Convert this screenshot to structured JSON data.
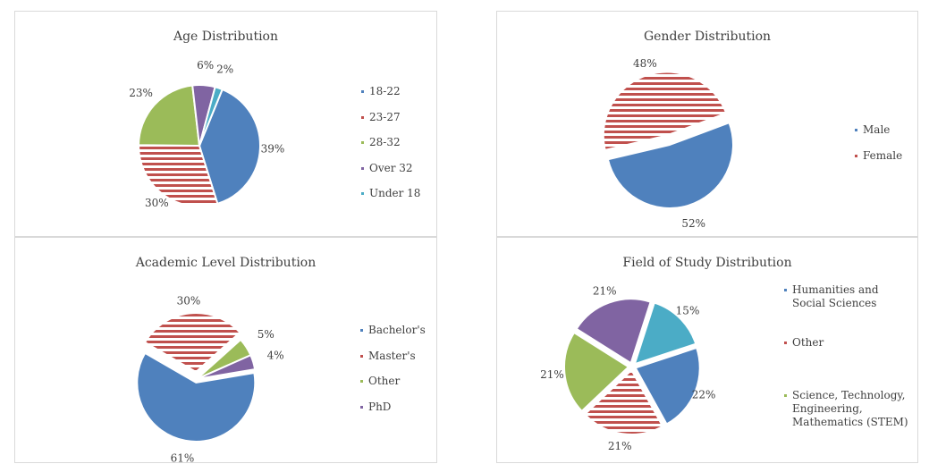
{
  "colors": {
    "blue": "#4f81bd",
    "red": "#c0504d",
    "green": "#9bbb59",
    "purple": "#8064a2",
    "teal": "#4bacc6"
  },
  "chart_data": [
    {
      "type": "pie",
      "title": "Age Distribution",
      "labels": [
        "18-22",
        "23-27",
        "28-32",
        "Over 32",
        "Under 18"
      ],
      "values": [
        39,
        30,
        23,
        6,
        2
      ],
      "data_labels": [
        "39%",
        "30%",
        "23%",
        "6%",
        "2%"
      ],
      "slice_styles": [
        "solid",
        "hatched",
        "solid",
        "solid",
        "solid"
      ],
      "slice_colors": [
        "blue",
        "red",
        "green",
        "purple",
        "teal"
      ],
      "legend": "right"
    },
    {
      "type": "pie",
      "title": "Gender Distribution",
      "labels": [
        "Male",
        "Female"
      ],
      "values": [
        52,
        48
      ],
      "data_labels": [
        "52%",
        "48%"
      ],
      "slice_styles": [
        "solid",
        "hatched"
      ],
      "slice_colors": [
        "blue",
        "red"
      ],
      "legend": "right"
    },
    {
      "type": "pie",
      "title": "Academic Level Distribution",
      "labels": [
        "Bachelor's",
        "Master's",
        "Other",
        "PhD"
      ],
      "values": [
        61,
        30,
        5,
        4
      ],
      "data_labels": [
        "61%",
        "30%",
        "5%",
        "4%"
      ],
      "slice_styles": [
        "solid",
        "hatched",
        "solid",
        "solid"
      ],
      "slice_colors": [
        "blue",
        "red",
        "green",
        "purple"
      ],
      "legend": "right"
    },
    {
      "type": "pie",
      "title": "Field of Study Distribution",
      "labels": [
        "Humanities and Social Sciences",
        "Other",
        "Science, Technology, Engineering, Mathematics (STEM)",
        "",
        ""
      ],
      "legend_labels": [
        "Humanities and Social Sciences",
        "Other",
        "Science, Technology, Engineering, Mathematics (STEM)"
      ],
      "values": [
        22,
        21,
        21,
        21,
        15
      ],
      "data_labels": [
        "22%",
        "21%",
        "21%",
        "21%",
        "15%"
      ],
      "slice_styles": [
        "solid",
        "hatched",
        "solid",
        "solid",
        "solid"
      ],
      "slice_colors": [
        "blue",
        "red",
        "green",
        "purple",
        "teal"
      ],
      "legend": "right"
    }
  ]
}
